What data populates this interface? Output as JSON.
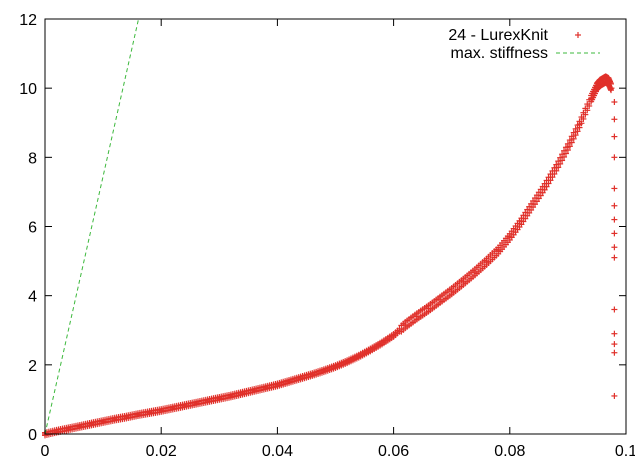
{
  "chart_data": {
    "type": "scatter",
    "title": "",
    "xlabel": "",
    "ylabel": "",
    "xlim": [
      0,
      0.1
    ],
    "ylim": [
      0,
      12
    ],
    "x_ticks": [
      0,
      0.02,
      0.04,
      0.06,
      0.08,
      0.1
    ],
    "x_tick_labels": [
      "0",
      "0.02",
      "0.04",
      "0.06",
      "0.08",
      "0.1"
    ],
    "y_ticks": [
      0,
      2,
      4,
      6,
      8,
      10,
      12
    ],
    "y_tick_labels": [
      "0",
      "2",
      "4",
      "6",
      "8",
      "10",
      "12"
    ],
    "grid": false,
    "legend_position": "top-right",
    "series": [
      {
        "name": "24 - LurexKnit",
        "kind": "points",
        "marker": "+",
        "color": "#e0302a",
        "x": [
          0,
          0.002,
          0.004,
          0.006,
          0.008,
          0.01,
          0.012,
          0.014,
          0.016,
          0.018,
          0.02,
          0.022,
          0.024,
          0.026,
          0.028,
          0.03,
          0.032,
          0.034,
          0.036,
          0.038,
          0.04,
          0.042,
          0.044,
          0.046,
          0.048,
          0.05,
          0.052,
          0.054,
          0.056,
          0.058,
          0.06,
          0.062,
          0.064,
          0.066,
          0.068,
          0.07,
          0.072,
          0.074,
          0.076,
          0.078,
          0.08,
          0.082,
          0.084,
          0.086,
          0.088,
          0.09,
          0.092,
          0.094,
          0.095,
          0.0955,
          0.096,
          0.0965,
          0.097,
          0.0975,
          0.098,
          0.098,
          0.098,
          0.098,
          0.098,
          0.098,
          0.098,
          0.098,
          0.098,
          0.098,
          0.098,
          0.098,
          0.098,
          0.098,
          0.098
        ],
        "y": [
          0,
          0.08,
          0.15,
          0.22,
          0.29,
          0.36,
          0.43,
          0.49,
          0.56,
          0.62,
          0.68,
          0.75,
          0.82,
          0.89,
          0.96,
          1.03,
          1.1,
          1.18,
          1.26,
          1.34,
          1.42,
          1.52,
          1.62,
          1.72,
          1.83,
          1.95,
          2.09,
          2.25,
          2.43,
          2.63,
          2.85,
          3.15,
          3.4,
          3.63,
          3.88,
          4.13,
          4.4,
          4.68,
          4.98,
          5.3,
          5.7,
          6.15,
          6.65,
          7.15,
          7.7,
          8.3,
          8.95,
          9.7,
          10.05,
          10.15,
          10.2,
          10.25,
          10.2,
          10.0,
          9.6,
          9.1,
          8.6,
          8.0,
          7.1,
          6.6,
          6.2,
          5.8,
          5.4,
          5.1,
          3.6,
          2.9,
          2.6,
          2.35,
          1.1
        ]
      },
      {
        "name": "max. stiffness",
        "kind": "line",
        "dash": "dashed",
        "color": "#3cb83c",
        "x": [
          0,
          0.0161
        ],
        "y": [
          0,
          12
        ]
      }
    ]
  }
}
